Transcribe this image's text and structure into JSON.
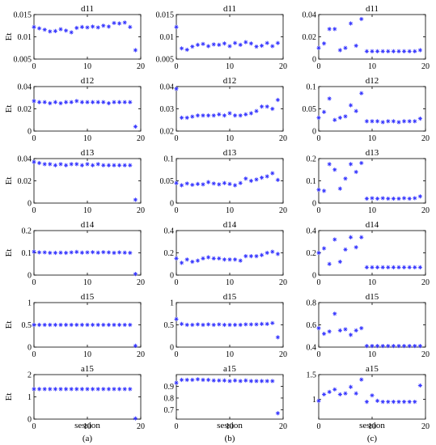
{
  "panel_labels": [
    "(a)",
    "(b)",
    "(c)"
  ],
  "xlabel": "session",
  "ylabel": "Et",
  "marker_color": "#3333ff",
  "x_ticks": [
    0,
    10,
    20
  ],
  "chart_data": [
    {
      "type": "scatter",
      "title": "d11",
      "xlim": [
        0,
        20
      ],
      "ylim": [
        0.005,
        0.015
      ],
      "ytick_labels": [
        "0.005",
        "0.01",
        "0.015"
      ],
      "ytick_values": [
        0.005,
        0.01,
        0.015
      ],
      "x": [
        0,
        1,
        2,
        3,
        4,
        5,
        6,
        7,
        8,
        9,
        10,
        11,
        12,
        13,
        14,
        15,
        16,
        17,
        18,
        19
      ],
      "y": [
        0.0122,
        0.0119,
        0.0116,
        0.0112,
        0.0113,
        0.0117,
        0.0114,
        0.011,
        0.012,
        0.0122,
        0.0121,
        0.0123,
        0.0121,
        0.0125,
        0.0123,
        0.0131,
        0.013,
        0.0132,
        0.0122,
        0.007
      ]
    },
    {
      "type": "scatter",
      "title": "d11",
      "xlim": [
        0,
        20
      ],
      "ylim": [
        0.005,
        0.015
      ],
      "ytick_labels": [
        "0.005",
        "0.01",
        "0.015"
      ],
      "ytick_values": [
        0.005,
        0.01,
        0.015
      ],
      "x": [
        0,
        1,
        2,
        3,
        4,
        5,
        6,
        7,
        8,
        9,
        10,
        11,
        12,
        13,
        14,
        15,
        16,
        17,
        18,
        19
      ],
      "y": [
        0.0122,
        0.0074,
        0.0071,
        0.0078,
        0.0082,
        0.0084,
        0.0079,
        0.0083,
        0.0082,
        0.0085,
        0.0079,
        0.0086,
        0.0082,
        0.0088,
        0.0085,
        0.0078,
        0.008,
        0.0086,
        0.0079,
        0.0086
      ]
    },
    {
      "type": "scatter",
      "title": "d11",
      "xlim": [
        0,
        20
      ],
      "ylim": [
        0,
        0.04
      ],
      "ytick_labels": [
        "0",
        "0.02",
        "0.04"
      ],
      "ytick_values": [
        0,
        0.02,
        0.04
      ],
      "x": [
        0,
        1,
        2,
        3,
        4,
        5,
        6,
        7,
        8,
        9,
        10,
        11,
        12,
        13,
        14,
        15,
        16,
        17,
        18,
        19
      ],
      "y": [
        0.01,
        0.014,
        0.027,
        0.027,
        0.008,
        0.01,
        0.032,
        0.012,
        0.036,
        0.007,
        0.007,
        0.007,
        0.007,
        0.007,
        0.007,
        0.007,
        0.007,
        0.007,
        0.007,
        0.008
      ]
    },
    {
      "type": "scatter",
      "title": "d12",
      "xlim": [
        0,
        20
      ],
      "ylim": [
        0,
        0.04
      ],
      "ytick_labels": [
        "0",
        "0.02",
        "0.04"
      ],
      "ytick_values": [
        0,
        0.02,
        0.04
      ],
      "x": [
        0,
        1,
        2,
        3,
        4,
        5,
        6,
        7,
        8,
        9,
        10,
        11,
        12,
        13,
        14,
        15,
        16,
        17,
        18,
        19
      ],
      "y": [
        0.027,
        0.026,
        0.026,
        0.025,
        0.026,
        0.025,
        0.026,
        0.026,
        0.027,
        0.026,
        0.026,
        0.026,
        0.026,
        0.026,
        0.025,
        0.026,
        0.026,
        0.026,
        0.026,
        0.004
      ]
    },
    {
      "type": "scatter",
      "title": "d12",
      "xlim": [
        0,
        20
      ],
      "ylim": [
        0.02,
        0.04
      ],
      "ytick_labels": [
        "0.02",
        "0.03",
        "0.04"
      ],
      "ytick_values": [
        0.02,
        0.03,
        0.04
      ],
      "x": [
        0,
        1,
        2,
        3,
        4,
        5,
        6,
        7,
        8,
        9,
        10,
        11,
        12,
        13,
        14,
        15,
        16,
        17,
        18,
        19
      ],
      "y": [
        0.039,
        0.026,
        0.026,
        0.0265,
        0.027,
        0.027,
        0.027,
        0.027,
        0.0275,
        0.027,
        0.028,
        0.027,
        0.027,
        0.0275,
        0.028,
        0.029,
        0.031,
        0.031,
        0.03,
        0.034
      ]
    },
    {
      "type": "scatter",
      "title": "d12",
      "xlim": [
        0,
        20
      ],
      "ylim": [
        0,
        0.1
      ],
      "ytick_labels": [
        "0",
        "0.05",
        "0.1"
      ],
      "ytick_values": [
        0,
        0.05,
        0.1
      ],
      "x": [
        0,
        1,
        2,
        3,
        4,
        5,
        6,
        7,
        8,
        9,
        10,
        11,
        12,
        13,
        14,
        15,
        16,
        17,
        18,
        19
      ],
      "y": [
        0.03,
        0.043,
        0.073,
        0.025,
        0.03,
        0.033,
        0.058,
        0.045,
        0.085,
        0.022,
        0.022,
        0.022,
        0.02,
        0.022,
        0.022,
        0.02,
        0.022,
        0.022,
        0.022,
        0.028
      ]
    },
    {
      "type": "scatter",
      "title": "d13",
      "xlim": [
        0,
        20
      ],
      "ylim": [
        0,
        0.04
      ],
      "ytick_labels": [
        "0",
        "0.02",
        "0.04"
      ],
      "ytick_values": [
        0,
        0.02,
        0.04
      ],
      "x": [
        0,
        1,
        2,
        3,
        4,
        5,
        6,
        7,
        8,
        9,
        10,
        11,
        12,
        13,
        14,
        15,
        16,
        17,
        18,
        19
      ],
      "y": [
        0.037,
        0.036,
        0.035,
        0.035,
        0.034,
        0.035,
        0.034,
        0.035,
        0.035,
        0.034,
        0.035,
        0.034,
        0.035,
        0.034,
        0.034,
        0.034,
        0.034,
        0.034,
        0.034,
        0.003
      ]
    },
    {
      "type": "scatter",
      "title": "d13",
      "xlim": [
        0,
        20
      ],
      "ylim": [
        0,
        0.1
      ],
      "ytick_labels": [
        "0",
        "0.05",
        "0.1"
      ],
      "ytick_values": [
        0,
        0.05,
        0.1
      ],
      "x": [
        0,
        1,
        2,
        3,
        4,
        5,
        6,
        7,
        8,
        9,
        10,
        11,
        12,
        13,
        14,
        15,
        16,
        17,
        18,
        19
      ],
      "y": [
        0.045,
        0.04,
        0.044,
        0.041,
        0.043,
        0.042,
        0.047,
        0.044,
        0.042,
        0.045,
        0.043,
        0.04,
        0.045,
        0.055,
        0.05,
        0.053,
        0.057,
        0.06,
        0.067,
        0.052
      ]
    },
    {
      "type": "scatter",
      "title": "d13",
      "xlim": [
        0,
        20
      ],
      "ylim": [
        0,
        0.2
      ],
      "ytick_labels": [
        "0",
        "0.1",
        "0.2"
      ],
      "ytick_values": [
        0,
        0.1,
        0.2
      ],
      "x": [
        0,
        1,
        2,
        3,
        4,
        5,
        6,
        7,
        8,
        9,
        10,
        11,
        12,
        13,
        14,
        15,
        16,
        17,
        18,
        19
      ],
      "y": [
        0.06,
        0.055,
        0.175,
        0.15,
        0.065,
        0.11,
        0.175,
        0.14,
        0.18,
        0.02,
        0.022,
        0.02,
        0.022,
        0.02,
        0.02,
        0.02,
        0.022,
        0.02,
        0.022,
        0.03
      ]
    },
    {
      "type": "scatter",
      "title": "d14",
      "xlim": [
        0,
        20
      ],
      "ylim": [
        0,
        0.2
      ],
      "ytick_labels": [
        "0",
        "0.1",
        "0.2"
      ],
      "ytick_values": [
        0,
        0.1,
        0.2
      ],
      "x": [
        0,
        1,
        2,
        3,
        4,
        5,
        6,
        7,
        8,
        9,
        10,
        11,
        12,
        13,
        14,
        15,
        16,
        17,
        18,
        19
      ],
      "y": [
        0.105,
        0.102,
        0.102,
        0.1,
        0.1,
        0.101,
        0.1,
        0.102,
        0.104,
        0.101,
        0.102,
        0.103,
        0.101,
        0.103,
        0.102,
        0.1,
        0.102,
        0.101,
        0.1,
        0.005
      ]
    },
    {
      "type": "scatter",
      "title": "d14",
      "xlim": [
        0,
        20
      ],
      "ylim": [
        0,
        0.4
      ],
      "ytick_labels": [
        "0",
        "0.2",
        "0.4"
      ],
      "ytick_values": [
        0,
        0.2,
        0.4
      ],
      "x": [
        0,
        1,
        2,
        3,
        4,
        5,
        6,
        7,
        8,
        9,
        10,
        11,
        12,
        13,
        14,
        15,
        16,
        17,
        18,
        19
      ],
      "y": [
        0.15,
        0.11,
        0.14,
        0.12,
        0.13,
        0.15,
        0.16,
        0.15,
        0.15,
        0.14,
        0.14,
        0.14,
        0.13,
        0.17,
        0.17,
        0.17,
        0.18,
        0.2,
        0.21,
        0.19
      ]
    },
    {
      "type": "scatter",
      "title": "d14",
      "xlim": [
        0,
        20
      ],
      "ylim": [
        0,
        0.4
      ],
      "ytick_labels": [
        "0",
        "0.2",
        "0.4"
      ],
      "ytick_values": [
        0,
        0.2,
        0.4
      ],
      "x": [
        0,
        1,
        2,
        3,
        4,
        5,
        6,
        7,
        8,
        9,
        10,
        11,
        12,
        13,
        14,
        15,
        16,
        17,
        18,
        19
      ],
      "y": [
        0.2,
        0.24,
        0.1,
        0.32,
        0.12,
        0.23,
        0.34,
        0.25,
        0.34,
        0.07,
        0.07,
        0.07,
        0.07,
        0.07,
        0.07,
        0.07,
        0.07,
        0.07,
        0.07,
        0.07
      ]
    },
    {
      "type": "scatter",
      "title": "d15",
      "xlim": [
        0,
        20
      ],
      "ylim": [
        0,
        1
      ],
      "ytick_labels": [
        "0",
        "0.5",
        "1"
      ],
      "ytick_values": [
        0,
        0.5,
        1
      ],
      "x": [
        0,
        1,
        2,
        3,
        4,
        5,
        6,
        7,
        8,
        9,
        10,
        11,
        12,
        13,
        14,
        15,
        16,
        17,
        18,
        19
      ],
      "y": [
        0.5,
        0.5,
        0.5,
        0.5,
        0.5,
        0.5,
        0.5,
        0.5,
        0.5,
        0.5,
        0.5,
        0.5,
        0.5,
        0.5,
        0.5,
        0.5,
        0.5,
        0.5,
        0.5,
        0.03
      ]
    },
    {
      "type": "scatter",
      "title": "d15",
      "xlim": [
        0,
        20
      ],
      "ylim": [
        0,
        1
      ],
      "ytick_labels": [
        "0",
        "0.5",
        "1"
      ],
      "ytick_values": [
        0,
        0.5,
        1
      ],
      "x": [
        0,
        1,
        2,
        3,
        4,
        5,
        6,
        7,
        8,
        9,
        10,
        11,
        12,
        13,
        14,
        15,
        16,
        17,
        18,
        19
      ],
      "y": [
        0.63,
        0.52,
        0.5,
        0.5,
        0.51,
        0.5,
        0.51,
        0.5,
        0.51,
        0.5,
        0.5,
        0.5,
        0.5,
        0.51,
        0.51,
        0.51,
        0.52,
        0.52,
        0.54,
        0.22
      ]
    },
    {
      "type": "scatter",
      "title": "d15",
      "xlim": [
        0,
        20
      ],
      "ylim": [
        0.4,
        0.8
      ],
      "ytick_labels": [
        "0.4",
        "0.6",
        "0.8"
      ],
      "ytick_values": [
        0.4,
        0.6,
        0.8
      ],
      "x": [
        0,
        1,
        2,
        3,
        4,
        5,
        6,
        7,
        8,
        9,
        10,
        11,
        12,
        13,
        14,
        15,
        16,
        17,
        18,
        19
      ],
      "y": [
        0.57,
        0.52,
        0.54,
        0.7,
        0.55,
        0.56,
        0.51,
        0.55,
        0.57,
        0.41,
        0.41,
        0.41,
        0.41,
        0.41,
        0.41,
        0.41,
        0.41,
        0.41,
        0.41,
        0.41
      ]
    },
    {
      "type": "scatter",
      "title": "a15",
      "xlim": [
        0,
        20
      ],
      "ylim": [
        0,
        2
      ],
      "ytick_labels": [
        "0",
        "1",
        "2"
      ],
      "ytick_values": [
        0,
        1,
        2
      ],
      "x": [
        0,
        1,
        2,
        3,
        4,
        5,
        6,
        7,
        8,
        9,
        10,
        11,
        12,
        13,
        14,
        15,
        16,
        17,
        18,
        19
      ],
      "y": [
        1.35,
        1.35,
        1.35,
        1.35,
        1.35,
        1.35,
        1.35,
        1.35,
        1.35,
        1.35,
        1.35,
        1.35,
        1.35,
        1.35,
        1.35,
        1.35,
        1.35,
        1.35,
        1.35,
        0.03
      ]
    },
    {
      "type": "scatter",
      "title": "a15",
      "xlim": [
        0,
        20
      ],
      "ylim": [
        0.62,
        1.0
      ],
      "ytick_labels": [
        "0.7",
        "0.8",
        "0.9"
      ],
      "ytick_values": [
        0.7,
        0.8,
        0.9
      ],
      "x": [
        0,
        1,
        2,
        3,
        4,
        5,
        6,
        7,
        8,
        9,
        10,
        11,
        12,
        13,
        14,
        15,
        16,
        17,
        18,
        19
      ],
      "y": [
        0.93,
        0.955,
        0.955,
        0.955,
        0.96,
        0.955,
        0.955,
        0.95,
        0.95,
        0.95,
        0.945,
        0.95,
        0.945,
        0.95,
        0.945,
        0.945,
        0.945,
        0.945,
        0.945,
        0.67
      ]
    },
    {
      "type": "scatter",
      "title": "a15",
      "xlim": [
        0,
        20
      ],
      "ylim": [
        0.6,
        1.5
      ],
      "ytick_labels": [
        "1",
        "1.5"
      ],
      "ytick_values": [
        1,
        1.5
      ],
      "x": [
        0,
        1,
        2,
        3,
        4,
        5,
        6,
        7,
        8,
        9,
        10,
        11,
        12,
        13,
        14,
        15,
        16,
        17,
        18,
        19
      ],
      "y": [
        0.97,
        1.1,
        1.15,
        1.2,
        1.1,
        1.12,
        1.25,
        1.12,
        1.4,
        0.95,
        1.08,
        0.97,
        0.95,
        0.95,
        0.95,
        0.95,
        0.95,
        0.95,
        0.95,
        1.28
      ]
    }
  ]
}
